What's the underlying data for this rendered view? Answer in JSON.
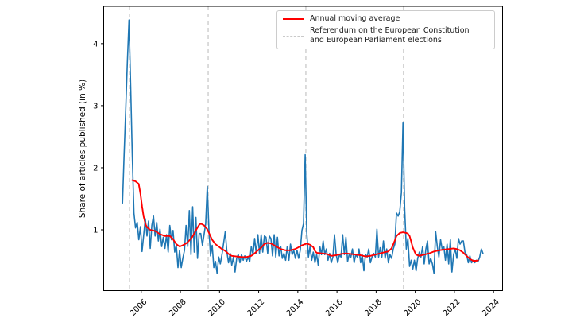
{
  "figure": {
    "background": "#ffffff"
  },
  "chart_data": {
    "type": "line",
    "title": "",
    "xlabel": "",
    "ylabel": "Share of articles published (in %)",
    "xlim": [
      2004.08,
      2024.46
    ],
    "ylim": [
      0.02,
      4.6
    ],
    "xticks": [
      2006,
      2008,
      2010,
      2012,
      2014,
      2016,
      2018,
      2020,
      2022,
      2024
    ],
    "yticks": [
      1,
      2,
      3,
      4
    ],
    "xtick_rotation_deg": 45,
    "grid": false,
    "legend_position": "upper right",
    "axis_color": "#000000",
    "series": [
      {
        "id": "monthly-share",
        "color": "#1f77b4",
        "line_style": "solid",
        "line_width": 1.6,
        "cadence": "monthly",
        "start_year": 2005,
        "start_month": 1,
        "values": [
          1.43,
          2.2,
          2.95,
          3.7,
          4.38,
          3.3,
          2.2,
          1.27,
          1.03,
          1.12,
          0.84,
          1.05,
          0.65,
          0.92,
          1.18,
          0.9,
          1.14,
          0.7,
          1.07,
          1.22,
          0.9,
          1.12,
          0.82,
          1.01,
          0.73,
          0.88,
          0.7,
          0.92,
          0.64,
          1.07,
          0.84,
          0.99,
          0.64,
          0.75,
          0.39,
          0.67,
          0.39,
          0.54,
          0.67,
          1.07,
          0.73,
          1.31,
          0.6,
          1.37,
          0.64,
          1.2,
          0.54,
          0.94,
          0.94,
          0.75,
          0.92,
          1.1,
          1.7,
          0.99,
          0.58,
          0.75,
          0.39,
          0.49,
          0.3,
          0.56,
          0.45,
          0.6,
          0.79,
          0.97,
          0.64,
          0.47,
          0.62,
          0.43,
          0.56,
          0.32,
          0.54,
          0.6,
          0.47,
          0.6,
          0.51,
          0.58,
          0.49,
          0.56,
          0.49,
          0.73,
          0.6,
          0.86,
          0.62,
          0.92,
          0.62,
          0.92,
          0.64,
          0.9,
          0.88,
          0.62,
          0.9,
          0.86,
          0.58,
          0.92,
          0.56,
          0.88,
          0.58,
          0.73,
          0.54,
          0.62,
          0.51,
          0.73,
          0.51,
          0.77,
          0.6,
          0.67,
          0.54,
          0.67,
          0.54,
          0.67,
          0.99,
          1.1,
          2.21,
          0.95,
          0.56,
          0.73,
          0.51,
          0.64,
          0.47,
          0.6,
          0.43,
          0.73,
          0.6,
          0.82,
          0.6,
          0.69,
          0.51,
          0.62,
          0.47,
          0.56,
          0.92,
          0.6,
          0.47,
          0.6,
          0.56,
          0.92,
          0.6,
          0.88,
          0.49,
          0.6,
          0.56,
          0.69,
          0.47,
          0.6,
          0.56,
          0.69,
          0.47,
          0.6,
          0.34,
          0.6,
          0.56,
          0.69,
          0.47,
          0.56,
          0.62,
          0.56,
          1.01,
          0.56,
          0.71,
          0.56,
          0.82,
          0.54,
          0.69,
          0.47,
          0.6,
          0.54,
          0.69,
          0.77,
          1.27,
          1.22,
          1.29,
          1.6,
          2.72,
          1.35,
          0.69,
          0.86,
          0.41,
          0.51,
          0.37,
          0.51,
          0.34,
          0.54,
          0.64,
          0.56,
          0.73,
          0.45,
          0.69,
          0.82,
          0.45,
          0.54,
          0.45,
          0.3,
          0.97,
          0.73,
          0.56,
          0.84,
          0.69,
          0.73,
          0.51,
          0.77,
          0.45,
          0.84,
          0.32,
          0.6,
          0.69,
          0.54,
          0.86,
          0.77,
          0.82,
          0.82,
          0.64,
          0.6,
          0.47,
          0.58,
          0.47,
          0.51,
          0.47,
          0.51,
          0.49,
          0.56,
          0.69,
          0.62
        ]
      },
      {
        "id": "annual-moving-average",
        "label": "Annual moving average",
        "color": "#ff0000",
        "line_style": "solid",
        "line_width": 1.9,
        "points": [
          [
            2005.54,
            1.8
          ],
          [
            2005.71,
            1.78
          ],
          [
            2005.87,
            1.74
          ],
          [
            2005.96,
            1.58
          ],
          [
            2006.04,
            1.38
          ],
          [
            2006.12,
            1.22
          ],
          [
            2006.21,
            1.1
          ],
          [
            2006.29,
            1.04
          ],
          [
            2006.46,
            1.0
          ],
          [
            2006.71,
            0.98
          ],
          [
            2006.96,
            0.93
          ],
          [
            2007.21,
            0.9
          ],
          [
            2007.46,
            0.9
          ],
          [
            2007.62,
            0.85
          ],
          [
            2007.79,
            0.77
          ],
          [
            2007.96,
            0.73
          ],
          [
            2008.12,
            0.75
          ],
          [
            2008.29,
            0.78
          ],
          [
            2008.46,
            0.83
          ],
          [
            2008.62,
            0.89
          ],
          [
            2008.79,
            0.99
          ],
          [
            2008.96,
            1.08
          ],
          [
            2009.04,
            1.1
          ],
          [
            2009.21,
            1.07
          ],
          [
            2009.37,
            1.01
          ],
          [
            2009.46,
            0.95
          ],
          [
            2009.62,
            0.84
          ],
          [
            2009.79,
            0.77
          ],
          [
            2009.96,
            0.73
          ],
          [
            2010.12,
            0.69
          ],
          [
            2010.29,
            0.66
          ],
          [
            2010.46,
            0.61
          ],
          [
            2010.62,
            0.58
          ],
          [
            2010.87,
            0.57
          ],
          [
            2011.12,
            0.56
          ],
          [
            2011.37,
            0.56
          ],
          [
            2011.62,
            0.58
          ],
          [
            2011.79,
            0.62
          ],
          [
            2011.96,
            0.67
          ],
          [
            2012.12,
            0.71
          ],
          [
            2012.29,
            0.77
          ],
          [
            2012.46,
            0.79
          ],
          [
            2012.62,
            0.78
          ],
          [
            2012.79,
            0.75
          ],
          [
            2012.96,
            0.72
          ],
          [
            2013.12,
            0.69
          ],
          [
            2013.37,
            0.67
          ],
          [
            2013.62,
            0.67
          ],
          [
            2013.87,
            0.69
          ],
          [
            2014.04,
            0.72
          ],
          [
            2014.21,
            0.75
          ],
          [
            2014.46,
            0.78
          ],
          [
            2014.62,
            0.76
          ],
          [
            2014.79,
            0.72
          ],
          [
            2014.87,
            0.66
          ],
          [
            2014.96,
            0.63
          ],
          [
            2015.21,
            0.62
          ],
          [
            2015.46,
            0.61
          ],
          [
            2015.71,
            0.58
          ],
          [
            2015.96,
            0.59
          ],
          [
            2016.21,
            0.61
          ],
          [
            2016.46,
            0.62
          ],
          [
            2016.71,
            0.61
          ],
          [
            2016.96,
            0.6
          ],
          [
            2017.21,
            0.59
          ],
          [
            2017.46,
            0.57
          ],
          [
            2017.71,
            0.58
          ],
          [
            2017.96,
            0.6
          ],
          [
            2018.21,
            0.62
          ],
          [
            2018.46,
            0.64
          ],
          [
            2018.62,
            0.65
          ],
          [
            2018.79,
            0.7
          ],
          [
            2018.87,
            0.76
          ],
          [
            2018.96,
            0.83
          ],
          [
            2019.04,
            0.9
          ],
          [
            2019.21,
            0.95
          ],
          [
            2019.37,
            0.96
          ],
          [
            2019.54,
            0.95
          ],
          [
            2019.62,
            0.94
          ],
          [
            2019.71,
            0.9
          ],
          [
            2019.79,
            0.81
          ],
          [
            2019.87,
            0.72
          ],
          [
            2019.96,
            0.65
          ],
          [
            2020.04,
            0.6
          ],
          [
            2020.21,
            0.58
          ],
          [
            2020.46,
            0.6
          ],
          [
            2020.71,
            0.62
          ],
          [
            2020.96,
            0.65
          ],
          [
            2021.21,
            0.67
          ],
          [
            2021.46,
            0.68
          ],
          [
            2021.71,
            0.69
          ],
          [
            2021.96,
            0.7
          ],
          [
            2022.12,
            0.69
          ],
          [
            2022.29,
            0.67
          ],
          [
            2022.46,
            0.63
          ],
          [
            2022.62,
            0.58
          ],
          [
            2022.79,
            0.53
          ],
          [
            2022.96,
            0.5
          ],
          [
            2023.12,
            0.5
          ],
          [
            2023.21,
            0.51
          ]
        ]
      }
    ],
    "event_lines": {
      "label": "Referendum on the European Constitution\nand European Parliament elections",
      "color": "#c9c9c9",
      "line_style": "dashed",
      "x_positions": [
        2005.4,
        2009.42,
        2014.41,
        2019.4
      ]
    },
    "legend": {
      "entries": [
        {
          "label": "Annual moving average",
          "color": "#ff0000",
          "line_style": "solid"
        },
        {
          "label": "Referendum on the European Constitution\nand European Parliament elections",
          "color": "#c9c9c9",
          "line_style": "dashed"
        }
      ]
    }
  }
}
